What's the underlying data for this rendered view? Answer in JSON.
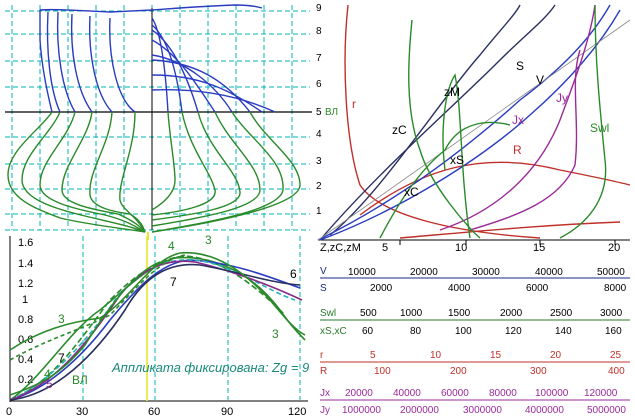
{
  "body_plan": {
    "waterlines": [
      "1",
      "2",
      "3",
      "4",
      "5",
      "6",
      "7",
      "8",
      "9"
    ],
    "design_waterline_label": "ВЛ"
  },
  "curves_of_form": {
    "x_ticks": [
      "5",
      "10",
      "15",
      "20"
    ],
    "x_axis_label": "Z,zC,zM",
    "curve_labels": {
      "r": "r",
      "zC": "zC",
      "zM": "zM",
      "S": "S",
      "V": "V",
      "Jy": "Jy",
      "Jx": "Jx",
      "R": "R",
      "xS": "xS",
      "Swl": "Swl",
      "xC": "xC"
    },
    "scales": [
      {
        "name": "V",
        "ticks": [
          "10000",
          "20000",
          "30000",
          "40000",
          "50000"
        ],
        "color": "#1a2a8a"
      },
      {
        "name": "S",
        "ticks": [
          "2000",
          "4000",
          "6000",
          "8000"
        ],
        "color": "#1a2a8a"
      },
      {
        "name": "Swl",
        "ticks": [
          "500",
          "1000",
          "1500",
          "2000",
          "2500",
          "3000"
        ],
        "color": "#2a7a2a"
      },
      {
        "name": "xS,xC",
        "ticks": [
          "60",
          "80",
          "100",
          "120",
          "140",
          "160"
        ],
        "color": "#2a7a2a"
      },
      {
        "name": "r",
        "ticks": [
          "5",
          "10",
          "15",
          "20",
          "25"
        ],
        "color": "#c0302a"
      },
      {
        "name": "R",
        "ticks": [
          "100",
          "200",
          "300",
          "400"
        ],
        "color": "#c0302a"
      },
      {
        "name": "Jx",
        "ticks": [
          "20000",
          "40000",
          "60000",
          "80000",
          "100000",
          "120000"
        ],
        "color": "#9a2a9a"
      },
      {
        "name": "Jy",
        "ticks": [
          "1000000",
          "2000000",
          "3000000",
          "4000000",
          "5000000"
        ],
        "color": "#9a2a9a"
      }
    ]
  },
  "sectional_area": {
    "y_ticks": [
      "1.6",
      "1.4",
      "1.2",
      "1",
      "0.8",
      "0.6",
      "0.4",
      "0.2",
      "0"
    ],
    "x_ticks": [
      "0",
      "30",
      "60",
      "90",
      "120"
    ],
    "curve_labels": [
      "3",
      "4",
      "5",
      "6",
      "7",
      "3",
      "4",
      "5",
      "6",
      "7",
      "3",
      "ВЛ"
    ],
    "caption": "Аппликата фиксирована: Zg = 9"
  },
  "colors": {
    "grid": "#00b4b4",
    "hull_above": "#2a3cc0",
    "hull_below": "#2a8a2a",
    "frame": "#000000",
    "highlight": "#e6e62a"
  }
}
